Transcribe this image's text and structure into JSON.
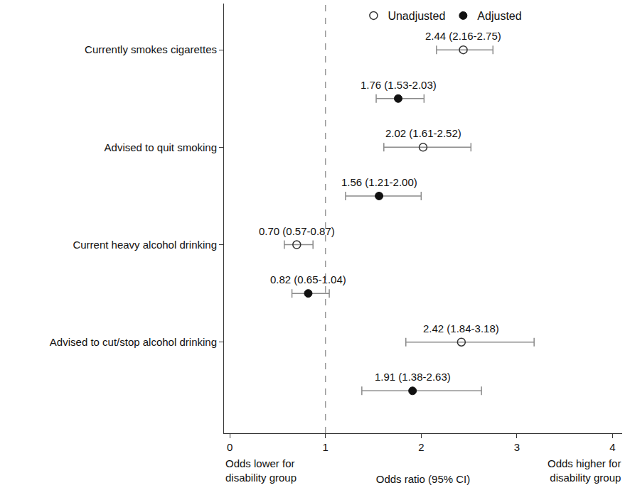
{
  "chart_data": {
    "type": "forest",
    "orientation": "horizontal",
    "categories": [
      "Currently smokes cigarettes",
      null,
      "Advised to quit smoking",
      null,
      "Current heavy alcohol drinking",
      null,
      "Advised to cut/stop alcohol drinking",
      null
    ],
    "series": [
      {
        "name": "Unadjusted",
        "color": "#333333",
        "marker": "open",
        "values": [
          2.44,
          null,
          2.02,
          null,
          0.7,
          null,
          2.42,
          null
        ],
        "ci_lower": [
          2.16,
          null,
          1.61,
          null,
          0.57,
          null,
          1.84,
          null
        ],
        "ci_upper": [
          2.75,
          null,
          2.52,
          null,
          0.87,
          null,
          3.18,
          null
        ],
        "value_labels": [
          "2.44 (2.16-2.75)",
          null,
          "2.02 (1.61-2.52)",
          null,
          "0.70 (0.57-0.87)",
          null,
          "2.42 (1.84-3.18)",
          null
        ]
      },
      {
        "name": "Adjusted",
        "color": "#111111",
        "marker": "filled",
        "values": [
          null,
          1.76,
          null,
          1.56,
          null,
          0.82,
          null,
          1.91
        ],
        "ci_lower": [
          null,
          1.53,
          null,
          1.21,
          null,
          0.65,
          null,
          1.38
        ],
        "ci_upper": [
          null,
          2.03,
          null,
          2.0,
          null,
          1.04,
          null,
          2.63
        ],
        "value_labels": [
          null,
          "1.76 (1.53-2.03)",
          null,
          "1.56 (1.21-2.00)",
          null,
          "0.82 (0.65-1.04)",
          null,
          "1.91 (1.38-2.63)"
        ]
      }
    ],
    "data_labels": true,
    "x_label": "Odds ratio (95% CI)",
    "annotations": [
      "Odds lower for\ndisability group",
      "Odds higher for\ndisability group"
    ],
    "reference_line": 1,
    "xlim": [
      -0.06,
      4.1
    ],
    "xticks": [
      0,
      1,
      2,
      3,
      4
    ],
    "legend": "top",
    "grid": false
  }
}
